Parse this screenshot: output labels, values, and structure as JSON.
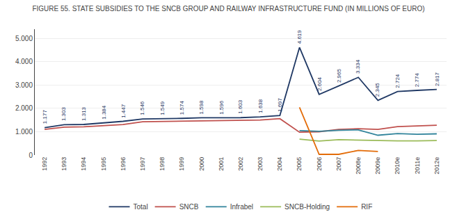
{
  "chart_data": {
    "type": "line",
    "title": "FIGURE 55. STATE SUBSIDIES TO THE SNCB GROUP AND RAILWAY INFRASTRUCTURE FUND (IN MILLIONS OF EURO)",
    "categories": [
      "1992",
      "1993",
      "1994",
      "1995",
      "1996",
      "1997",
      "1998",
      "1999",
      "2000",
      "2001",
      "2002",
      "2003",
      "2004",
      "2005",
      "2006",
      "2007",
      "2008e",
      "2009e",
      "2010e",
      "2011e",
      "2012e"
    ],
    "series": [
      {
        "name": "Total",
        "color": "#1F3864",
        "values": [
          1177,
          1303,
          1313,
          1384,
          1447,
          1546,
          1549,
          1574,
          1598,
          1596,
          1603,
          1638,
          1697,
          4619,
          2604,
          2965,
          3334,
          2345,
          2724,
          2774,
          2817
        ],
        "data_labels": true,
        "value_labels": [
          "1.177",
          "1.303",
          "1.313",
          "1.384",
          "1.447",
          "1.546",
          "1.549",
          "1.574",
          "1.598",
          "1.596",
          "1.603",
          "1.638",
          "1.697",
          "4.619",
          "2.604",
          "2.965",
          "3.334",
          "2.345",
          "2.724",
          "2.774",
          "2.817"
        ]
      },
      {
        "name": "SNCB",
        "color": "#C0504D",
        "values": [
          1100,
          1200,
          1210,
          1270,
          1310,
          1430,
          1440,
          1455,
          1470,
          1475,
          1480,
          1500,
          1560,
          980,
          1000,
          1100,
          1130,
          1100,
          1220,
          1250,
          1280
        ]
      },
      {
        "name": "Infrabel",
        "color": "#31849B",
        "values": [
          null,
          null,
          null,
          null,
          null,
          null,
          null,
          null,
          null,
          null,
          null,
          null,
          null,
          1050,
          1020,
          1060,
          1080,
          850,
          920,
          890,
          910
        ]
      },
      {
        "name": "SNCB-Holding",
        "color": "#9BBB59",
        "values": [
          null,
          null,
          null,
          null,
          null,
          null,
          null,
          null,
          null,
          null,
          null,
          null,
          null,
          680,
          600,
          660,
          640,
          610,
          610,
          610,
          620
        ]
      },
      {
        "name": "RIF",
        "color": "#E36C09",
        "values": [
          null,
          null,
          null,
          null,
          null,
          null,
          null,
          null,
          null,
          null,
          null,
          null,
          null,
          2050,
          30,
          30,
          200,
          150,
          null,
          null,
          null
        ]
      }
    ],
    "ylim": [
      0,
      5400
    ],
    "yticks": [
      0,
      {
        "value": 1000,
        "label": "1.000"
      },
      {
        "value": 2000,
        "label": "2.000"
      },
      {
        "value": 3000,
        "label": "3.000"
      },
      {
        "value": 4000,
        "label": "4.000"
      },
      {
        "value": 5000,
        "label": "5.000"
      }
    ],
    "grid": "y",
    "legend": "bottom"
  }
}
